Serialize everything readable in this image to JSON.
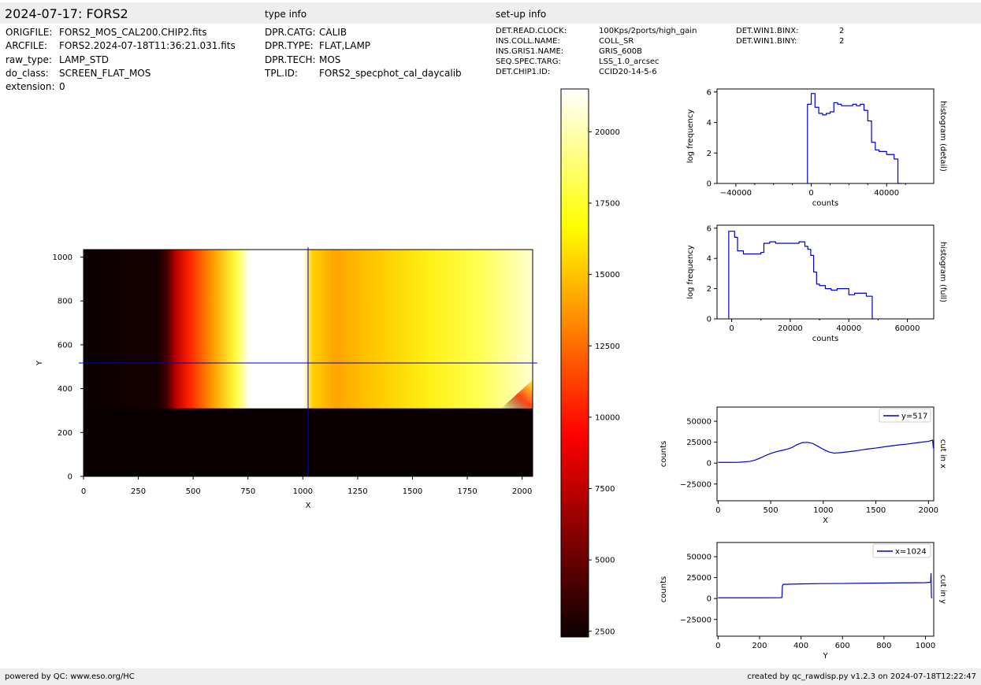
{
  "header": {
    "title": "2024-07-17: FORS2",
    "type_info_title": "type info",
    "setup_info_title": "set-up info"
  },
  "file_info": [
    {
      "key": "ORIGFILE:",
      "value": "FORS2_MOS_CAL200.CHIP2.fits"
    },
    {
      "key": "ARCFILE:",
      "value": "FORS2.2024-07-18T11:36:21.031.fits"
    },
    {
      "key": "raw_type:",
      "value": "LAMP_STD"
    },
    {
      "key": "do_class:",
      "value": "SCREEN_FLAT_MOS"
    },
    {
      "key": "extension:",
      "value": "0"
    }
  ],
  "type_info": [
    {
      "key": "DPR.CATG:",
      "value": "CALIB"
    },
    {
      "key": "DPR.TYPE:",
      "value": "FLAT,LAMP"
    },
    {
      "key": "DPR.TECH:",
      "value": "MOS"
    },
    {
      "key": "TPL.ID:",
      "value": "FORS2_specphot_cal_daycalib"
    }
  ],
  "setup_info": [
    {
      "key": "DET.READ.CLOCK:",
      "value": "100Kps/2ports/high_gain"
    },
    {
      "key": "INS.COLL.NAME:",
      "value": "COLL_SR"
    },
    {
      "key": "INS.GRIS1.NAME:",
      "value": "GRIS_600B"
    },
    {
      "key": "SEQ.SPEC.TARG:",
      "value": "LSS_1.0_arcsec"
    },
    {
      "key": "DET.CHIP1.ID:",
      "value": "CCID20-14-5-6"
    }
  ],
  "setup_info_2": [
    {
      "key": "DET.WIN1.BINX:",
      "value": "2"
    },
    {
      "key": "DET.WIN1.BINY:",
      "value": "2"
    }
  ],
  "footer": {
    "left": "powered by QC: www.eso.org/HC",
    "right": "created by qc_rawdisp.py v1.2.3 on 2024-07-18T12:22:47"
  },
  "colors": {
    "band": "#eeeeee",
    "line": "#0000cc"
  },
  "chart_data": [
    {
      "type": "heatmap",
      "xlabel": "X",
      "ylabel": "Y",
      "xlim": [
        0,
        2048
      ],
      "ylim": [
        0,
        1034
      ],
      "xticks": [
        0,
        250,
        500,
        750,
        1000,
        1250,
        1500,
        1750,
        2000
      ],
      "yticks": [
        0,
        200,
        400,
        600,
        800,
        1000
      ],
      "crosshair": {
        "x": 1024,
        "y": 517
      },
      "colormap": "hot",
      "colorbar": {
        "ticks": [
          2500,
          5000,
          7500,
          10000,
          12500,
          15000,
          17500,
          20000
        ],
        "range": [
          2300,
          21500
        ]
      }
    },
    {
      "type": "line",
      "title": "histogram (detail)",
      "xlabel": "counts",
      "ylabel": "log frequency",
      "xlim": [
        -50000,
        65000
      ],
      "ylim": [
        0,
        6.2
      ],
      "xticks": [
        -40000,
        0,
        40000
      ],
      "yticks": [
        0,
        2,
        4,
        6
      ],
      "x": [
        -2000,
        0,
        2000,
        4000,
        6000,
        8000,
        10000,
        12000,
        14000,
        16000,
        18000,
        20000,
        22000,
        24000,
        26000,
        28000,
        30000,
        32000,
        34000,
        36000,
        38000,
        40000,
        42000,
        44000,
        46000
      ],
      "y": [
        5.2,
        5.9,
        5.0,
        4.6,
        4.5,
        4.6,
        4.7,
        5.3,
        5.2,
        5.1,
        5.1,
        5.1,
        5.2,
        5.1,
        5.2,
        4.8,
        4.1,
        2.7,
        2.2,
        2.1,
        2.1,
        1.9,
        1.9,
        1.6,
        0.0
      ]
    },
    {
      "type": "line",
      "title": "histogram (full)",
      "xlabel": "counts",
      "ylabel": "log frequency",
      "xlim": [
        -5000,
        69000
      ],
      "ylim": [
        0,
        6.2
      ],
      "xticks": [
        0,
        20000,
        40000,
        60000
      ],
      "yticks": [
        0,
        2,
        4,
        6
      ],
      "x": [
        -1000,
        1000,
        2000,
        4000,
        6000,
        8000,
        10000,
        11000,
        13000,
        15000,
        17000,
        19000,
        21000,
        23000,
        25000,
        26000,
        27000,
        28000,
        29000,
        30000,
        32000,
        34000,
        36000,
        38000,
        40000,
        42000,
        44000,
        46000,
        48000
      ],
      "y": [
        5.8,
        5.4,
        4.5,
        4.3,
        4.3,
        4.3,
        4.4,
        5.0,
        5.1,
        5.0,
        5.0,
        5.0,
        5.0,
        5.1,
        4.8,
        4.6,
        4.2,
        3.1,
        2.3,
        2.2,
        2.0,
        1.9,
        2.0,
        2.0,
        1.6,
        1.7,
        1.7,
        1.5,
        0.0
      ]
    },
    {
      "type": "line",
      "title": "cut in x",
      "xlabel": "X",
      "ylabel": "counts",
      "xlim": [
        -10,
        2050
      ],
      "ylim": [
        -45000,
        67000
      ],
      "xticks": [
        0,
        500,
        1000,
        1500,
        2000
      ],
      "yticks": [
        -25000,
        0,
        25000,
        50000
      ],
      "series": [
        {
          "name": "y=517",
          "x": [
            0,
            100,
            200,
            300,
            350,
            400,
            450,
            500,
            550,
            600,
            650,
            700,
            750,
            800,
            850,
            900,
            950,
            1000,
            1050,
            1100,
            1150,
            1200,
            1300,
            1400,
            1500,
            1600,
            1700,
            1800,
            1900,
            2000,
            2040,
            2046
          ],
          "y": [
            900,
            900,
            1000,
            2000,
            3500,
            6000,
            9000,
            11500,
            13500,
            15000,
            16500,
            18500,
            22000,
            24500,
            24800,
            23500,
            20000,
            16500,
            13500,
            12000,
            12300,
            13000,
            14500,
            16500,
            18000,
            19800,
            21500,
            22800,
            24500,
            26000,
            27500,
            18000
          ]
        }
      ]
    },
    {
      "type": "line",
      "title": "cut in y",
      "xlabel": "Y",
      "ylabel": "counts",
      "xlim": [
        -5,
        1040
      ],
      "ylim": [
        -45000,
        67000
      ],
      "xticks": [
        0,
        200,
        400,
        600,
        800,
        1000
      ],
      "yticks": [
        -25000,
        0,
        25000,
        50000
      ],
      "series": [
        {
          "name": "x=1024",
          "x": [
            0,
            100,
            200,
            300,
            308,
            310,
            315,
            400,
            500,
            600,
            700,
            800,
            900,
            1000,
            1025,
            1027,
            1029,
            1031,
            1033
          ],
          "y": [
            900,
            900,
            900,
            1000,
            1200,
            15000,
            17000,
            17500,
            17900,
            18000,
            18300,
            18500,
            18800,
            19000,
            19500,
            30000,
            1200,
            900,
            900
          ]
        }
      ]
    }
  ]
}
